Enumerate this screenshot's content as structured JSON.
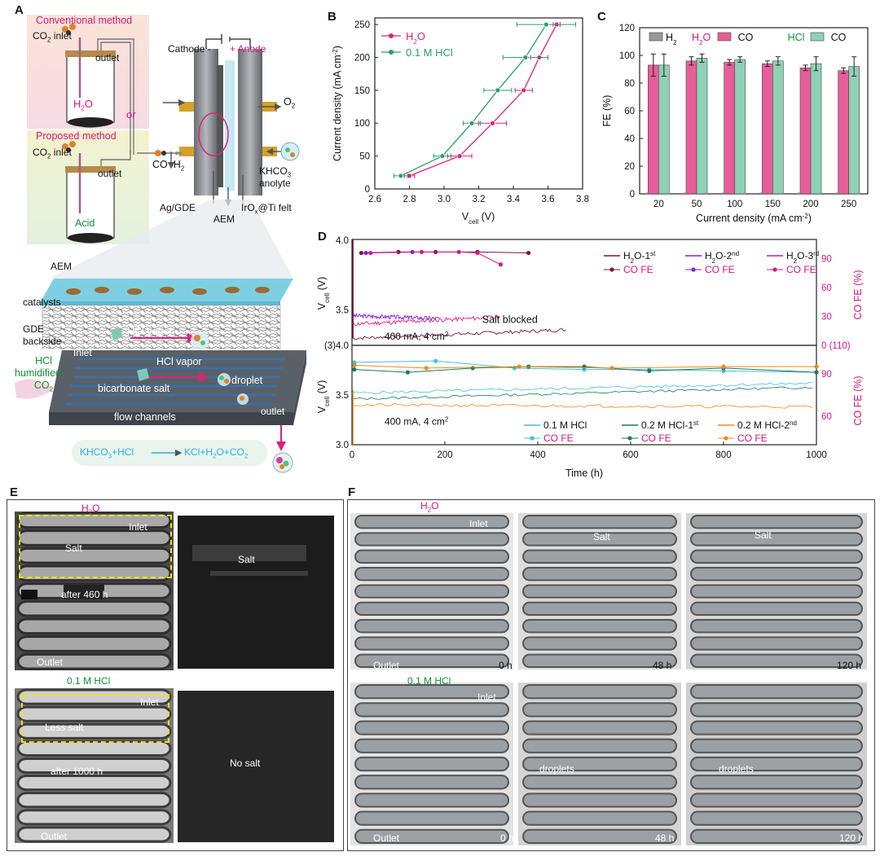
{
  "panel_letters": {
    "a": "A",
    "b": "B",
    "c": "C",
    "d": "D",
    "e": "E",
    "f": "F"
  },
  "panel_a": {
    "conventional": "Conventional method",
    "proposed": "Proposed method",
    "co2_inlet_1": "CO",
    "co2_inlet_1b": "inlet",
    "co2_inlet_2": "CO",
    "co2_inlet_2b": "inlet",
    "outlet_1": "outlet",
    "outlet_2": "outlet",
    "h2o": "H",
    "h2o_b": "O",
    "or": "or",
    "acid": "Acid",
    "cathode": "Cathode -",
    "anode": "+ Anode",
    "o2": "O",
    "co": "CO",
    "h2": "H",
    "khco3": "KHCO",
    "anolyte": "anolyte",
    "ag_gde": "Ag/GDE",
    "aem_top": "AEM",
    "irox": "IrO",
    "irox_b": "@Ti felt",
    "aem_layer": "AEM",
    "catalysts": "catalysts",
    "gde": "GDE",
    "backside": "backside",
    "inlet": "Inlet",
    "hcl_vapor_1": "HCl vapor",
    "hcl_vapor_2": "HCl vapor",
    "hcl_humid_1": "HCl",
    "hcl_humid_2": "humidified",
    "hcl_humid_3": "CO",
    "bicarbonate": "bicarbonate salt",
    "droplet": "droplet",
    "flow_channels": "flow channels",
    "outlet_3": "outlet",
    "eq_left": "KHCO",
    "eq_left_b": "+HCl",
    "eq_right": "KCl+H",
    "eq_right_b": "O+CO"
  },
  "chart_data": [
    {
      "id": "B",
      "type": "scatter",
      "xlabel": "V",
      "xlabel_sub": "cell",
      "xlabel_unit": " (V)",
      "ylabel": "Current density (mA cm",
      "ylabel_sup": "-2",
      "ylabel_end": ")",
      "xlim": [
        2.6,
        3.8
      ],
      "ylim": [
        0,
        260
      ],
      "xticks": [
        "2.6",
        "2.8",
        "3.0",
        "3.2",
        "3.4",
        "3.6",
        "3.8"
      ],
      "yticks": [
        "0",
        "50",
        "100",
        "150",
        "200",
        "250"
      ],
      "legend": "top-left",
      "series": [
        {
          "name": "H",
          "name_sub": "2",
          "name_end": "O",
          "color": "#e0207a",
          "x": [
            2.8,
            3.09,
            3.28,
            3.46,
            3.55,
            3.65
          ],
          "y": [
            20,
            50,
            100,
            150,
            200,
            250
          ],
          "xerr": [
            0.03,
            0.07,
            0.08,
            0.05,
            0.05,
            0.02
          ]
        },
        {
          "name": "0.1 M HCl",
          "color": "#2a9e6b",
          "x": [
            2.75,
            2.99,
            3.16,
            3.31,
            3.47,
            3.59
          ],
          "y": [
            20,
            50,
            100,
            150,
            200,
            250
          ],
          "xerr": [
            0.04,
            0.05,
            0.05,
            0.08,
            0.13,
            0.17
          ]
        }
      ]
    },
    {
      "id": "C",
      "type": "bar",
      "xlabel": "Current density (mA cm",
      "xlabel_sup": "-2",
      "xlabel_end": ")",
      "ylabel": "FE (%)",
      "ylim": [
        0,
        120
      ],
      "yticks": [
        "0",
        "20",
        "40",
        "60",
        "80",
        "100",
        "120"
      ],
      "categories": [
        "20",
        "50",
        "100",
        "150",
        "200",
        "250"
      ],
      "legend": {
        "h2": "H",
        "h2_sub": "2",
        "h2o": "H",
        "h2o_sub": "2",
        "h2o_end": "O",
        "co1": "CO",
        "hcl": "HCl",
        "co2": "CO"
      },
      "series": [
        {
          "name": "H2O CO",
          "color": "#e85d9a",
          "values": [
            93,
            96,
            95,
            94,
            91,
            89
          ],
          "err": [
            8,
            3,
            2,
            2,
            2,
            2
          ]
        },
        {
          "name": "HCl CO",
          "color": "#8fd1b4",
          "values": [
            93,
            98,
            97,
            96,
            94,
            92
          ],
          "err": [
            8,
            3,
            2,
            3,
            5,
            7
          ]
        },
        {
          "name": "H2",
          "color": "#999999",
          "values": [
            1,
            1,
            1,
            1,
            1,
            1
          ]
        }
      ]
    },
    {
      "id": "D",
      "type": "line",
      "xlabel": "Time (h)",
      "xticks": [
        "0",
        "200",
        "400",
        "600",
        "800",
        "1000"
      ],
      "xlim": [
        0,
        1000
      ],
      "top": {
        "ylabel": "V",
        "ylabel_sub": "cell",
        "ylabel_unit": " (V)",
        "yticks_left": [
          "4.0",
          "3.5"
        ],
        "yticks_right": [
          "90",
          "60",
          "30",
          "0 (110)"
        ],
        "right_label": "CO FE (%)",
        "annotation": "Salt blocked",
        "condition": "400 mA, 4 cm",
        "legend": [
          "H",
          "O-1",
          "H",
          "O-2",
          "H",
          "O-3"
        ],
        "legend_sup": [
          "st",
          "nd",
          "rd"
        ],
        "co_fe": "CO FE",
        "colors": [
          "#7a1538",
          "#8a1cd6",
          "#d61a8a"
        ]
      },
      "bottom": {
        "ylabel": "V",
        "ylabel_sub": "cell",
        "ylabel_unit": " (V)",
        "yticks_left": [
          "(3)4.0",
          "3.5",
          "3.0"
        ],
        "yticks_right": [
          "90",
          "60"
        ],
        "right_label": "CO FE (%)",
        "condition": "400 mA, 4 cm",
        "legend": [
          "0.1 M HCl",
          "0.2 M HCl-1",
          "0.2 M HCl-2"
        ],
        "legend_sup": [
          "st",
          "nd"
        ],
        "co_fe": "CO FE",
        "colors": [
          "#40bfe0",
          "#1c7a5a",
          "#f08a14"
        ]
      }
    }
  ],
  "panel_e": {
    "h2o_h": "H",
    "h2o_o": "O",
    "inlet_1": "Inlet",
    "salt_1": "Salt",
    "after_460": "after 460 h",
    "outlet_1": "Outlet",
    "salt_2": "Salt",
    "hcl": "0.1 M HCl",
    "inlet_2": "Inlet",
    "less_salt": "Less salt",
    "after_1000": "after 1000 h",
    "outlet_2": "Outlet",
    "no_salt": "No salt"
  },
  "panel_f": {
    "h2o_h": "H",
    "h2o_o": "O",
    "inlet_1": "Inlet",
    "outlet_1": "Outlet",
    "t0_1": "0 h",
    "salt_1": "Salt",
    "t48_1": "48 h",
    "salt_2": "Salt",
    "t120_1": "120 h",
    "hcl": "0.1 M HCl",
    "inlet_2": "Inlet",
    "outlet_2": "Outlet",
    "t0_2": "0 h",
    "droplets_1": "droplets",
    "t48_2": "48 h",
    "droplets_2": "droplets",
    "t120_2": "120 h"
  }
}
